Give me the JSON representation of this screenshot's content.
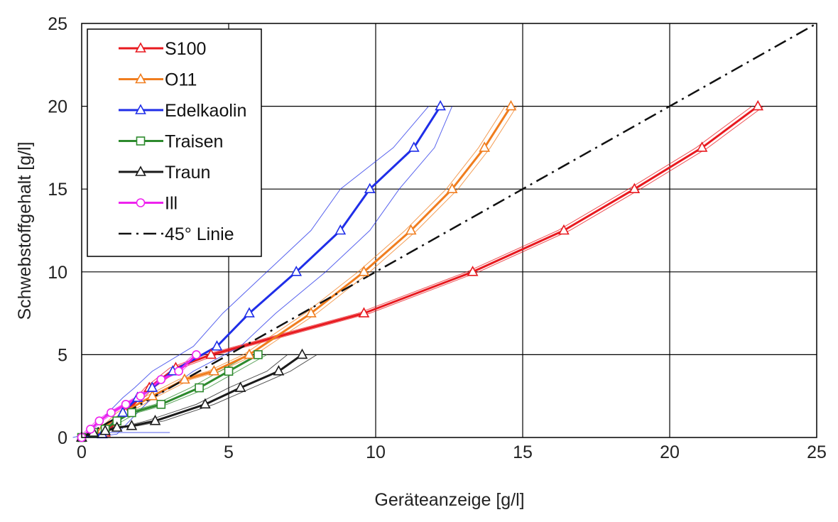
{
  "chart_data": {
    "type": "line",
    "xlabel": "Geräteanzeige [g/l]",
    "ylabel": "Schwebstoffgehalt [g/l]",
    "xlim": [
      0,
      25
    ],
    "ylim": [
      0,
      25
    ],
    "xticks": [
      "0",
      "5",
      "10",
      "15",
      "20",
      "25"
    ],
    "yticks": [
      "0",
      "5",
      "10",
      "15",
      "20",
      "25"
    ],
    "grid": true,
    "legend_position": "top-left",
    "series": [
      {
        "name": "S100",
        "color": "#e8191f",
        "marker": "triangle",
        "x": [
          0,
          0.8,
          1.5,
          2.3,
          3.2,
          4.4,
          9.6,
          13.3,
          16.4,
          18.8,
          21.1,
          23.0
        ],
        "y": [
          0,
          0.3,
          1.5,
          3.0,
          4.2,
          5.0,
          7.5,
          10.0,
          12.5,
          15.0,
          17.5,
          20.0
        ],
        "band_lo": [
          0.05,
          0.85,
          1.6,
          2.45,
          3.4,
          4.6,
          9.8,
          13.5,
          16.6,
          19.0,
          21.3,
          23.2
        ],
        "band_hi": [
          -0.05,
          0.75,
          1.4,
          2.15,
          3.0,
          4.2,
          9.4,
          13.1,
          16.2,
          18.6,
          20.9,
          22.8
        ]
      },
      {
        "name": "O11",
        "color": "#f07d1e",
        "marker": "triangle",
        "x": [
          0,
          0.7,
          1.4,
          2.4,
          3.5,
          4.5,
          5.7,
          7.8,
          9.6,
          11.2,
          12.6,
          13.7,
          14.6
        ],
        "y": [
          0,
          0.5,
          1.5,
          2.5,
          3.5,
          4.0,
          5.0,
          7.5,
          10.0,
          12.5,
          15.0,
          17.5,
          20.0
        ],
        "band_lo": [
          0.1,
          0.8,
          1.6,
          2.6,
          3.7,
          4.7,
          5.9,
          8.0,
          9.8,
          11.4,
          12.8,
          13.9,
          14.8
        ],
        "band_hi": [
          -0.1,
          0.6,
          1.2,
          2.2,
          3.3,
          4.3,
          5.5,
          7.6,
          9.4,
          11.0,
          12.4,
          13.5,
          14.4
        ]
      },
      {
        "name": "Edelkaolin",
        "color": "#1f2ee8",
        "marker": "triangle",
        "x": [
          0,
          0.7,
          1.4,
          1.9,
          2.4,
          3.1,
          4.6,
          5.7,
          7.3,
          8.8,
          9.8,
          11.3,
          12.2
        ],
        "y": [
          0,
          0.2,
          1.5,
          2.4,
          3.0,
          4.0,
          5.5,
          7.5,
          10.0,
          12.5,
          15.0,
          17.5,
          20.0
        ],
        "band_lo": [
          0.3,
          1.2,
          1.9,
          2.4,
          3.0,
          3.8,
          5.4,
          6.6,
          8.3,
          9.8,
          10.8,
          12.0,
          12.6
        ],
        "band_hi": [
          -0.3,
          0.2,
          0.9,
          1.4,
          1.8,
          2.4,
          3.8,
          4.8,
          6.3,
          7.8,
          8.8,
          10.6,
          11.8
        ],
        "tail_x": [
          0.5,
          3.0
        ],
        "tail_y": [
          0.3,
          0.3
        ]
      },
      {
        "name": "Traisen",
        "color": "#2d8a2d",
        "marker": "square",
        "x": [
          0,
          0.4,
          0.8,
          1.2,
          1.7,
          2.7,
          4.0,
          5.0,
          6.0
        ],
        "y": [
          0,
          0.3,
          0.5,
          1.0,
          1.5,
          2.0,
          3.0,
          4.0,
          5.0
        ],
        "band_lo": [
          0.1,
          0.5,
          0.9,
          1.4,
          1.9,
          2.9,
          4.3,
          5.3,
          6.3
        ],
        "band_hi": [
          -0.1,
          0.3,
          0.7,
          1.0,
          1.5,
          2.5,
          3.7,
          4.7,
          5.7
        ]
      },
      {
        "name": "Traun",
        "color": "#1a1a1a",
        "marker": "triangle",
        "x": [
          0,
          0.4,
          0.8,
          1.2,
          1.7,
          2.5,
          4.2,
          5.4,
          6.7,
          7.5
        ],
        "y": [
          0,
          0.3,
          0.4,
          0.6,
          0.7,
          1.0,
          2.0,
          3.0,
          4.0,
          5.0
        ],
        "band_lo": [
          0.1,
          0.5,
          0.9,
          1.4,
          1.9,
          2.8,
          4.5,
          5.8,
          7.1,
          8.0
        ],
        "band_hi": [
          -0.1,
          0.3,
          0.7,
          1.0,
          1.5,
          2.2,
          3.9,
          5.0,
          6.3,
          7.0
        ]
      },
      {
        "name": "Ill",
        "color": "#ee22ee",
        "marker": "circle",
        "x": [
          0,
          0.3,
          0.6,
          1.0,
          1.5,
          2.0,
          2.7,
          3.3,
          3.9
        ],
        "y": [
          0,
          0.5,
          1.0,
          1.5,
          2.0,
          2.5,
          3.5,
          4.0,
          5.0
        ],
        "band_lo": [
          0.1,
          0.4,
          0.7,
          1.1,
          1.6,
          2.1,
          2.8,
          3.4,
          4.0
        ],
        "band_hi": [
          -0.1,
          0.2,
          0.5,
          0.9,
          1.4,
          1.9,
          2.6,
          3.2,
          3.8
        ]
      },
      {
        "name": "45° Linie",
        "color": "#111111",
        "marker": "none",
        "dash": "18,7,3,7",
        "x": [
          0,
          25
        ],
        "y": [
          0,
          25
        ]
      }
    ]
  }
}
